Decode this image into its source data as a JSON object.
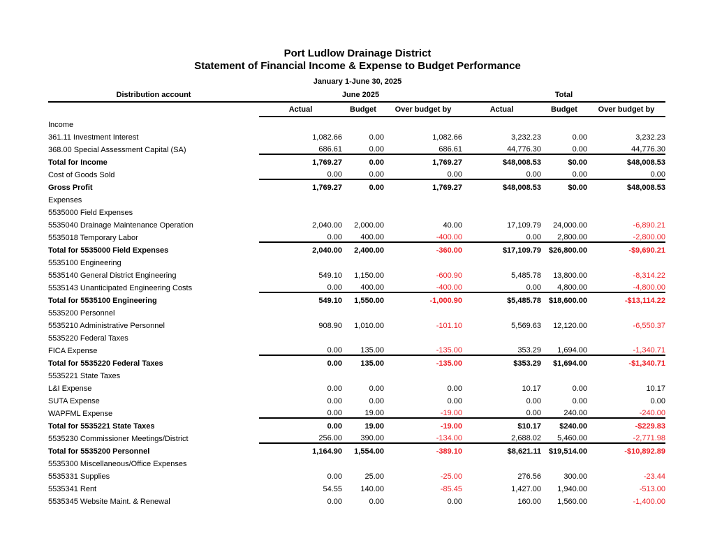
{
  "report": {
    "title": "Port Ludlow Drainage District",
    "subtitle": "Statement of Financial Income & Expense to Budget Performance",
    "period": "January 1-June 30, 2025"
  },
  "colors": {
    "negative": "#ed1c24",
    "text": "#000000",
    "background": "#ffffff"
  },
  "table": {
    "account_header": "Distribution account",
    "group_headers": [
      "June 2025",
      "Total"
    ],
    "column_headers": [
      "Actual",
      "Budget",
      "Over budget by",
      "Actual",
      "Budget",
      "Over budget by"
    ],
    "rows": [
      {
        "label": "Income",
        "level": 0,
        "bold": false,
        "rule": false,
        "values": [
          "",
          "",
          "",
          "",
          "",
          ""
        ]
      },
      {
        "label": "361.11 Investment Interest",
        "level": 1,
        "bold": false,
        "rule": false,
        "values": [
          "1,082.66",
          "0.00",
          "1,082.66",
          "3,232.23",
          "0.00",
          "3,232.23"
        ]
      },
      {
        "label": "368.00 Special Assessment Capital (SA)",
        "level": 1,
        "bold": false,
        "rule": false,
        "values": [
          "686.61",
          "0.00",
          "686.61",
          "44,776.30",
          "0.00",
          "44,776.30"
        ]
      },
      {
        "label": "Total for Income",
        "level": 0,
        "bold": true,
        "rule": true,
        "values": [
          "1,769.27",
          "0.00",
          "1,769.27",
          "$48,008.53",
          "$0.00",
          "$48,008.53"
        ]
      },
      {
        "label": "Cost of Goods Sold",
        "level": 0,
        "bold": false,
        "rule": false,
        "values": [
          "0.00",
          "0.00",
          "0.00",
          "0.00",
          "0.00",
          "0.00"
        ]
      },
      {
        "label": "Gross Profit",
        "level": 0,
        "bold": true,
        "rule": true,
        "values": [
          "1,769.27",
          "0.00",
          "1,769.27",
          "$48,008.53",
          "$0.00",
          "$48,008.53"
        ]
      },
      {
        "label": "Expenses",
        "level": 0,
        "bold": false,
        "rule": false,
        "values": [
          "",
          "",
          "",
          "",
          "",
          ""
        ]
      },
      {
        "label": "5535000 Field Expenses",
        "level": 1,
        "bold": false,
        "rule": false,
        "values": [
          "",
          "",
          "",
          "",
          "",
          ""
        ]
      },
      {
        "label": "5535040 Drainage Maintenance Operation",
        "level": 2,
        "bold": false,
        "rule": false,
        "values": [
          "2,040.00",
          "2,000.00",
          "40.00",
          "17,109.79",
          "24,000.00",
          "-6,890.21"
        ]
      },
      {
        "label": "5535018 Temporary Labor",
        "level": 2,
        "bold": false,
        "rule": false,
        "values": [
          "0.00",
          "400.00",
          "-400.00",
          "0.00",
          "2,800.00",
          "-2,800.00"
        ]
      },
      {
        "label": "Total for 5535000 Field Expenses",
        "level": 1,
        "bold": true,
        "rule": true,
        "values": [
          "2,040.00",
          "2,400.00",
          "-360.00",
          "$17,109.79",
          "$26,800.00",
          "-$9,690.21"
        ]
      },
      {
        "label": "5535100 Engineering",
        "level": 1,
        "bold": false,
        "rule": false,
        "values": [
          "",
          "",
          "",
          "",
          "",
          ""
        ]
      },
      {
        "label": "5535140 General District Engineering",
        "level": 2,
        "bold": false,
        "rule": false,
        "values": [
          "549.10",
          "1,150.00",
          "-600.90",
          "5,485.78",
          "13,800.00",
          "-8,314.22"
        ]
      },
      {
        "label": "5535143 Unanticipated Engineering Costs",
        "level": 2,
        "bold": false,
        "rule": false,
        "values": [
          "0.00",
          "400.00",
          "-400.00",
          "0.00",
          "4,800.00",
          "-4,800.00"
        ]
      },
      {
        "label": "Total for 5535100 Engineering",
        "level": 1,
        "bold": true,
        "rule": true,
        "values": [
          "549.10",
          "1,550.00",
          "-1,000.90",
          "$5,485.78",
          "$18,600.00",
          "-$13,114.22"
        ]
      },
      {
        "label": "5535200 Personnel",
        "level": 1,
        "bold": false,
        "rule": false,
        "values": [
          "",
          "",
          "",
          "",
          "",
          ""
        ]
      },
      {
        "label": "5535210 Administrative Personnel",
        "level": 2,
        "bold": false,
        "rule": false,
        "values": [
          "908.90",
          "1,010.00",
          "-101.10",
          "5,569.63",
          "12,120.00",
          "-6,550.37"
        ]
      },
      {
        "label": "5535220 Federal Taxes",
        "level": 2,
        "bold": false,
        "rule": false,
        "values": [
          "",
          "",
          "",
          "",
          "",
          ""
        ]
      },
      {
        "label": "FICA Expense",
        "level": 3,
        "bold": false,
        "rule": false,
        "values": [
          "0.00",
          "135.00",
          "-135.00",
          "353.29",
          "1,694.00",
          "-1,340.71"
        ]
      },
      {
        "label": "Total for 5535220 Federal Taxes",
        "level": 2,
        "bold": true,
        "rule": true,
        "values": [
          "0.00",
          "135.00",
          "-135.00",
          "$353.29",
          "$1,694.00",
          "-$1,340.71"
        ]
      },
      {
        "label": "5535221 State Taxes",
        "level": 2,
        "bold": false,
        "rule": false,
        "values": [
          "",
          "",
          "",
          "",
          "",
          ""
        ]
      },
      {
        "label": "L&I Expense",
        "level": 3,
        "bold": false,
        "rule": false,
        "values": [
          "0.00",
          "0.00",
          "0.00",
          "10.17",
          "0.00",
          "10.17"
        ]
      },
      {
        "label": "SUTA Expense",
        "level": 3,
        "bold": false,
        "rule": false,
        "values": [
          "0.00",
          "0.00",
          "0.00",
          "0.00",
          "0.00",
          "0.00"
        ]
      },
      {
        "label": "WAPFML Expense",
        "level": 3,
        "bold": false,
        "rule": false,
        "values": [
          "0.00",
          "19.00",
          "-19.00",
          "0.00",
          "240.00",
          "-240.00"
        ]
      },
      {
        "label": "Total for 5535221 State Taxes",
        "level": 2,
        "bold": true,
        "rule": true,
        "values": [
          "0.00",
          "19.00",
          "-19.00",
          "$10.17",
          "$240.00",
          "-$229.83"
        ]
      },
      {
        "label": "5535230 Commissioner Meetings/District",
        "level": 2,
        "bold": false,
        "rule": false,
        "values": [
          "256.00",
          "390.00",
          "-134.00",
          "2,688.02",
          "5,460.00",
          "-2,771.98"
        ]
      },
      {
        "label": "Total for 5535200 Personnel",
        "level": 1,
        "bold": true,
        "rule": true,
        "values": [
          "1,164.90",
          "1,554.00",
          "-389.10",
          "$8,621.11",
          "$19,514.00",
          "-$10,892.89"
        ]
      },
      {
        "label": "5535300 Miscellaneous/Office Expenses",
        "level": 1,
        "bold": false,
        "rule": false,
        "values": [
          "",
          "",
          "",
          "",
          "",
          ""
        ]
      },
      {
        "label": "5535331 Supplies",
        "level": 2,
        "bold": false,
        "rule": false,
        "values": [
          "0.00",
          "25.00",
          "-25.00",
          "276.56",
          "300.00",
          "-23.44"
        ]
      },
      {
        "label": "5535341 Rent",
        "level": 2,
        "bold": false,
        "rule": false,
        "values": [
          "54.55",
          "140.00",
          "-85.45",
          "1,427.00",
          "1,940.00",
          "-513.00"
        ]
      },
      {
        "label": "5535345 Website Maint. & Renewal",
        "level": 2,
        "bold": false,
        "rule": false,
        "values": [
          "0.00",
          "0.00",
          "0.00",
          "160.00",
          "1,560.00",
          "-1,400.00"
        ]
      }
    ]
  }
}
